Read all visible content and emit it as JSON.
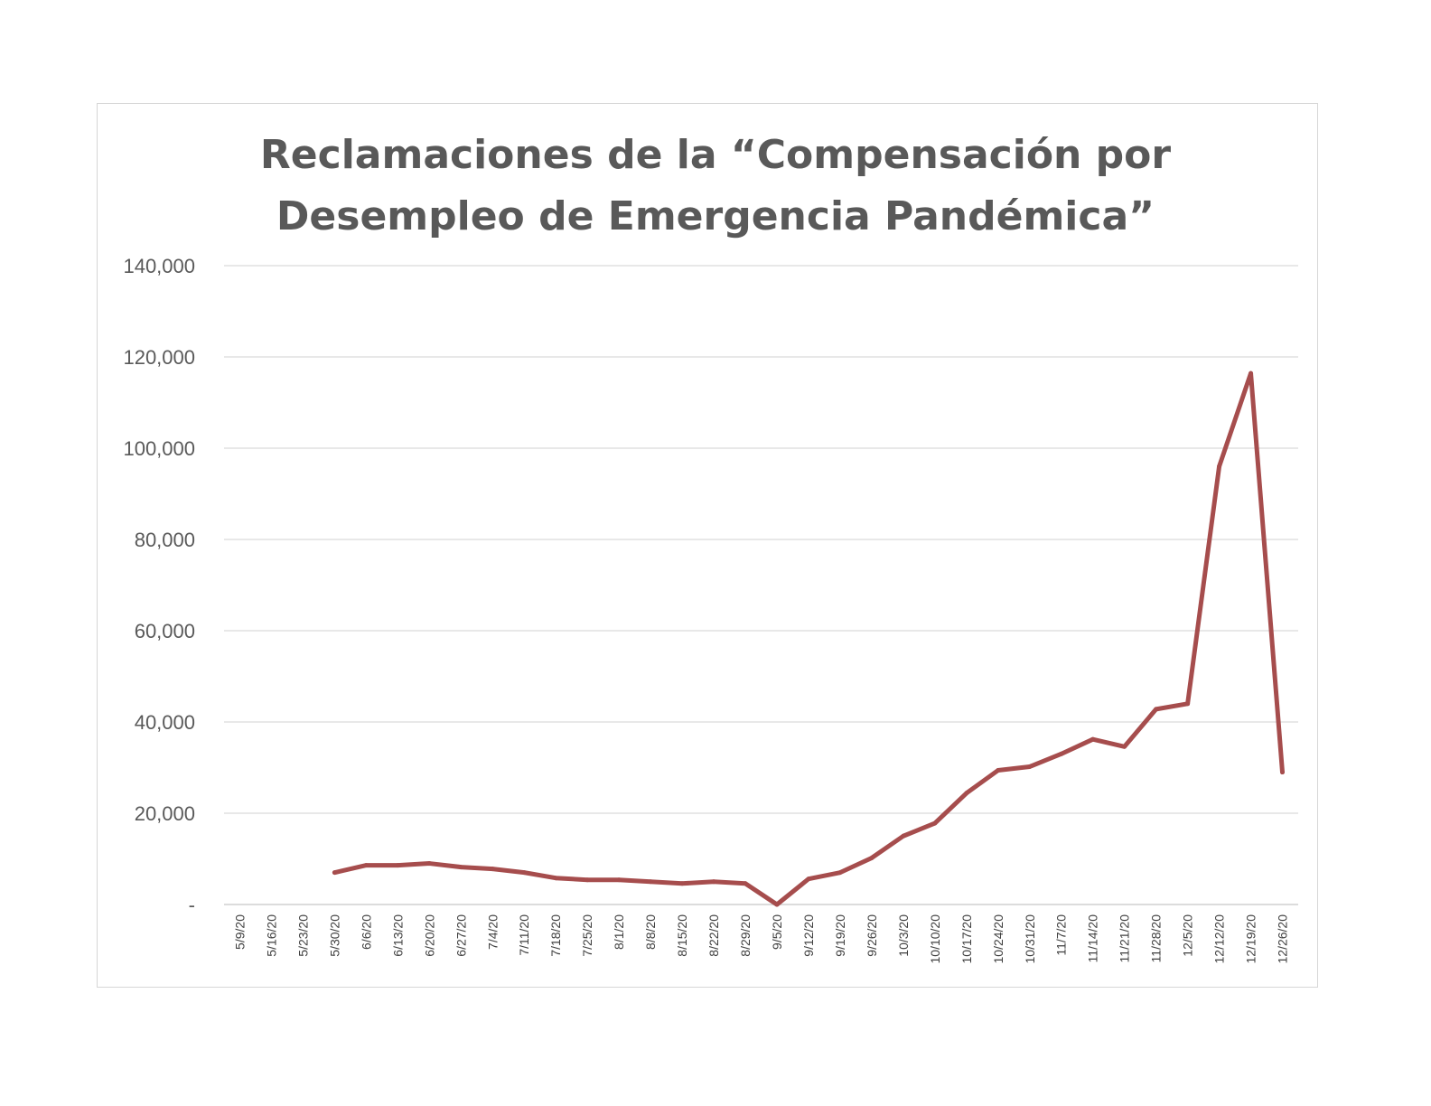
{
  "chart_data": {
    "type": "line",
    "title_lines": [
      "Reclamaciones de la “Compensación por",
      "Desempleo de Emergencia Pandémica”"
    ],
    "title": "Reclamaciones de la “Compensación por Desempleo de Emergencia Pandémica”",
    "xlabel": "",
    "ylabel": "",
    "ylim": [
      0,
      140000
    ],
    "yticks": [
      0,
      20000,
      40000,
      60000,
      80000,
      100000,
      120000,
      140000
    ],
    "ytick_labels": [
      "-",
      "20,000",
      "40,000",
      "60,000",
      "80,000",
      "100,000",
      "120,000",
      "140,000"
    ],
    "grid": "horizontal",
    "legend": "none",
    "line_color": "#A64D4D",
    "categories": [
      "5/9/20",
      "5/16/20",
      "5/23/20",
      "5/30/20",
      "6/6/20",
      "6/13/20",
      "6/20/20",
      "6/27/20",
      "7/4/20",
      "7/11/20",
      "7/18/20",
      "7/25/20",
      "8/1/20",
      "8/8/20",
      "8/15/20",
      "8/22/20",
      "8/29/20",
      "9/5/20",
      "9/12/20",
      "9/19/20",
      "9/26/20",
      "10/3/20",
      "10/10/20",
      "10/17/20",
      "10/24/20",
      "10/31/20",
      "11/7/20",
      "11/14/20",
      "11/21/20",
      "11/28/20",
      "12/5/20",
      "12/12/20",
      "12/19/20",
      "12/26/20"
    ],
    "series": [
      {
        "values": [
          null,
          null,
          null,
          7000,
          8600,
          8600,
          9000,
          8200,
          7800,
          7000,
          5800,
          5400,
          5400,
          5000,
          4600,
          5000,
          4600,
          0,
          5600,
          7000,
          10200,
          15000,
          17800,
          24400,
          29400,
          30200,
          33000,
          36200,
          34600,
          42800,
          44000,
          96000,
          116400,
          29000
        ]
      }
    ]
  }
}
